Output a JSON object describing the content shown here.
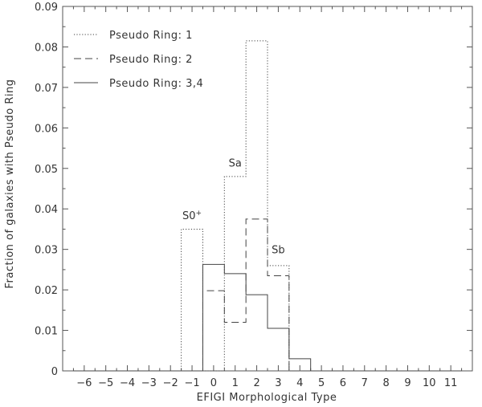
{
  "chart_data": {
    "type": "histogram-step",
    "title": "",
    "xlabel": "EFIGI Morphological Type",
    "ylabel": "Fraction of galaxies with Pseudo Ring",
    "xlim": [
      -7,
      12
    ],
    "ylim": [
      0,
      0.09
    ],
    "x_ticks": [
      "−6",
      "−5",
      "−4",
      "−3",
      "−2",
      "−1",
      "0",
      "1",
      "2",
      "3",
      "4",
      "5",
      "6",
      "7",
      "8",
      "9",
      "10",
      "11"
    ],
    "y_ticks": [
      "0",
      "0.01",
      "0.02",
      "0.03",
      "0.04",
      "0.05",
      "0.06",
      "0.07",
      "0.08",
      "0.09"
    ],
    "legend_position": "top-left",
    "series": [
      {
        "name": "Pseudo Ring: 1",
        "style": "dotted",
        "x": [
          -6,
          -5,
          -4,
          -3,
          -2,
          -1,
          0,
          1,
          2,
          3,
          4,
          5,
          6,
          7,
          8,
          9,
          10,
          11
        ],
        "values": [
          0,
          0,
          0,
          0,
          0,
          0.035,
          0,
          0.048,
          0.0815,
          0.026,
          0,
          0,
          0,
          0,
          0,
          0,
          0,
          0
        ]
      },
      {
        "name": "Pseudo Ring: 2",
        "style": "dashed",
        "x": [
          -6,
          -5,
          -4,
          -3,
          -2,
          -1,
          0,
          1,
          2,
          3,
          4,
          5,
          6,
          7,
          8,
          9,
          10,
          11
        ],
        "values": [
          0,
          0,
          0,
          0,
          0,
          0,
          0.0198,
          0.012,
          0.0375,
          0.0235,
          0,
          0,
          0,
          0,
          0,
          0,
          0,
          0
        ]
      },
      {
        "name": "Pseudo Ring: 3,4",
        "style": "solid",
        "x": [
          -6,
          -5,
          -4,
          -3,
          -2,
          -1,
          0,
          1,
          2,
          3,
          4,
          5,
          6,
          7,
          8,
          9,
          10,
          11
        ],
        "values": [
          0,
          0,
          0,
          0,
          0,
          0,
          0.0263,
          0.024,
          0.0188,
          0.0105,
          0.003,
          0,
          0,
          0,
          0,
          0,
          0,
          0
        ]
      }
    ],
    "annotations": [
      {
        "text": "S0",
        "sup": "+",
        "x": -1,
        "y": 0.0375
      },
      {
        "text": "Sa",
        "x": 1,
        "y": 0.0505
      },
      {
        "text": "Sb",
        "x": 3,
        "y": 0.029
      }
    ]
  }
}
